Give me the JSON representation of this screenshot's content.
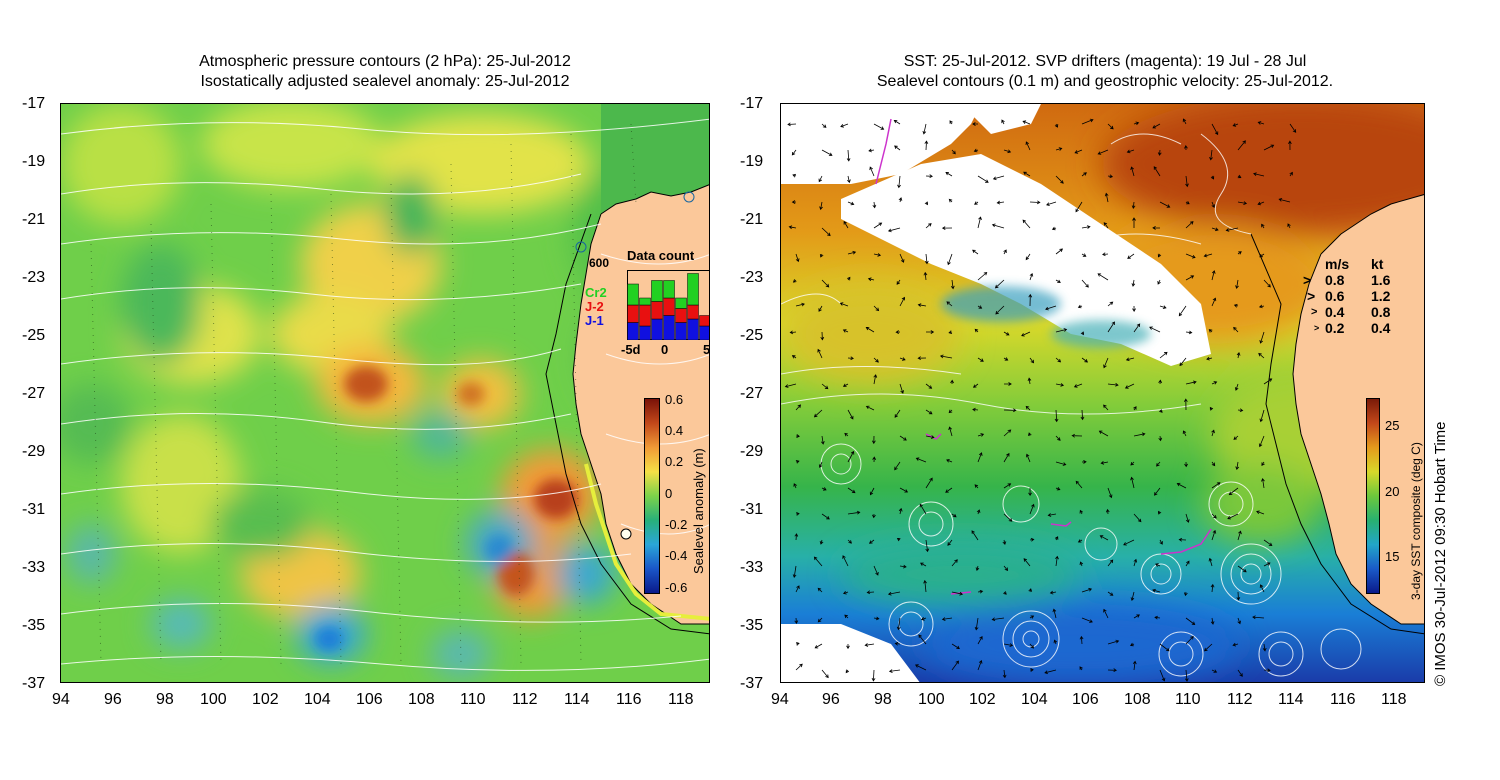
{
  "left_panel": {
    "title_line1": "Atmospheric pressure contours (2 hPa): 25-Jul-2012",
    "title_line2": "Isostatically adjusted sealevel anomaly: 25-Jul-2012",
    "y_ticks": [
      "-17",
      "-19",
      "-21",
      "-23",
      "-25",
      "-27",
      "-29",
      "-31",
      "-33",
      "-35",
      "-37"
    ],
    "x_ticks": [
      "94",
      "96",
      "98",
      "100",
      "102",
      "104",
      "106",
      "108",
      "110",
      "112",
      "114",
      "116",
      "118"
    ],
    "isobath_label": "600",
    "data_count": {
      "title": "Data count",
      "legend": [
        "Cr2",
        "J-2",
        "J-1"
      ],
      "legend_colors": [
        "#22d022",
        "#e81010",
        "#1010e0"
      ],
      "x_labels": [
        "-5d",
        "0",
        "5"
      ],
      "bars": [
        {
          "j1": 0.25,
          "j2": 0.25,
          "cr2": 0.3
        },
        {
          "j1": 0.2,
          "j2": 0.3,
          "cr2": 0.1
        },
        {
          "j1": 0.3,
          "j2": 0.25,
          "cr2": 0.3
        },
        {
          "j1": 0.35,
          "j2": 0.25,
          "cr2": 0.25
        },
        {
          "j1": 0.25,
          "j2": 0.2,
          "cr2": 0.15
        },
        {
          "j1": 0.3,
          "j2": 0.2,
          "cr2": 0.45
        },
        {
          "j1": 0.2,
          "j2": 0.15,
          "cr2": 0.0
        }
      ]
    },
    "colorbar": {
      "label": "Sealevel anomaly (m)",
      "ticks": [
        "0.6",
        "0.4",
        "0.2",
        "0",
        "-0.2",
        "-0.4",
        "-0.6"
      ],
      "range": [
        -0.6,
        0.6
      ]
    }
  },
  "right_panel": {
    "title_line1": "SST: 25-Jul-2012. SVP drifters (magenta): 19 Jul - 28 Jul",
    "title_line2": "Sealevel contours (0.1 m) and geostrophic velocity: 25-Jul-2012.",
    "y_ticks": [
      "-17",
      "-19",
      "-21",
      "-23",
      "-25",
      "-27",
      "-29",
      "-31",
      "-33",
      "-35",
      "-37"
    ],
    "x_ticks": [
      "94",
      "96",
      "98",
      "100",
      "102",
      "104",
      "106",
      "108",
      "110",
      "112",
      "114",
      "116",
      "118"
    ],
    "velocity_legend": {
      "header_ms": "m/s",
      "header_kt": "kt",
      "rows": [
        {
          "ms": "0.8",
          "kt": "1.6"
        },
        {
          "ms": "0.6",
          "kt": "1.2"
        },
        {
          "ms": "0.4",
          "kt": "0.8"
        },
        {
          "ms": "0.2",
          "kt": "0.4"
        }
      ]
    },
    "colorbar": {
      "label": "3-day SST composite (deg C)",
      "ticks": [
        "25",
        "20",
        "15"
      ],
      "range": [
        12,
        27
      ]
    }
  },
  "credit": "© IMOS 30-Jul-2012 09:30 Hobart Time",
  "colors": {
    "land": "#fbc89a",
    "contour": "#ffffff",
    "coast": "#000000",
    "drifter": "#cc33cc"
  }
}
